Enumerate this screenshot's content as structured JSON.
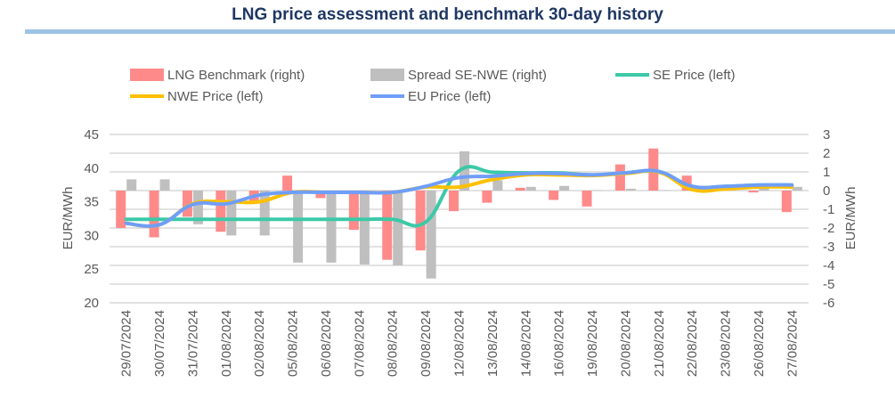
{
  "chart_data": {
    "type": "bar+line",
    "title": "LNG price assessment and benchmark 30-day history",
    "ylabel_left": "EUR/MWh",
    "ylabel_right": "EUR/MWh",
    "ylim_left": [
      20,
      45
    ],
    "yticks_left": [
      20,
      25,
      30,
      35,
      40,
      45
    ],
    "ylim_right": [
      -6,
      3
    ],
    "yticks_right": [
      -6,
      -5,
      -4,
      -3,
      -2,
      -1,
      0,
      1,
      2,
      3
    ],
    "grid": true,
    "legend_position": "top",
    "categories": [
      "29/07/2024",
      "30/07/2024",
      "31/07/2024",
      "01/08/2024",
      "02/08/2024",
      "05/08/2024",
      "06/08/2024",
      "07/08/2024",
      "08/08/2024",
      "09/08/2024",
      "12/08/2024",
      "13/08/2024",
      "14/08/2024",
      "16/08/2024",
      "19/08/2024",
      "20/08/2024",
      "21/08/2024",
      "22/08/2024",
      "23/08/2024",
      "26/08/2024",
      "27/08/2024"
    ],
    "series": [
      {
        "name": "LNG Benchmark (right)",
        "kind": "bar",
        "axis": "right",
        "color": "#ff8a8a",
        "values": [
          -2.0,
          -2.5,
          -1.4,
          -2.2,
          -0.6,
          0.8,
          -0.4,
          -2.1,
          -3.7,
          -3.2,
          -1.1,
          -0.65,
          0.15,
          -0.5,
          -0.85,
          1.4,
          2.25,
          0.8,
          0.25,
          -0.1,
          -1.15
        ]
      },
      {
        "name": "Spread SE-NWE (right)",
        "kind": "bar",
        "axis": "right",
        "color": "#bfbfbf",
        "values": [
          0.6,
          0.6,
          -1.8,
          -2.4,
          -2.4,
          -3.85,
          -3.85,
          -3.95,
          -4.0,
          -4.7,
          2.1,
          0.55,
          0.2,
          0.25,
          0.02,
          0.1,
          0.02,
          0.0,
          0.15,
          0.2,
          0.2
        ]
      },
      {
        "name": "SE Price (left)",
        "kind": "line",
        "axis": "left",
        "color": "#3cc9a8",
        "values": [
          32.4,
          32.4,
          32.4,
          32.4,
          32.4,
          32.4,
          32.4,
          32.4,
          32.4,
          32.0,
          39.6,
          39.4,
          39.3,
          39.3,
          39.0,
          39.3,
          39.5,
          37.3,
          37.3,
          37.5,
          37.5
        ]
      },
      {
        "name": "NWE Price (left)",
        "kind": "line",
        "axis": "left",
        "color": "#ffc000",
        "values": [
          31.8,
          31.6,
          34.7,
          35.0,
          35.0,
          36.4,
          36.4,
          36.4,
          36.4,
          37.2,
          37.2,
          38.3,
          39.0,
          39.0,
          38.9,
          39.2,
          39.4,
          36.8,
          36.9,
          37.2,
          37.2
        ]
      },
      {
        "name": "EU Price (left)",
        "kind": "line",
        "axis": "left",
        "color": "#6f9ef8",
        "values": [
          31.8,
          31.6,
          34.6,
          34.7,
          36.0,
          36.4,
          36.4,
          36.4,
          36.4,
          37.3,
          38.6,
          38.8,
          39.2,
          39.2,
          39.0,
          39.3,
          39.5,
          37.3,
          37.3,
          37.5,
          37.5
        ]
      }
    ]
  }
}
